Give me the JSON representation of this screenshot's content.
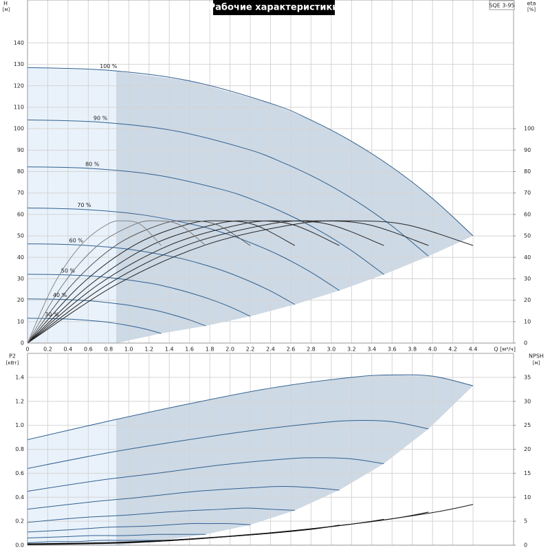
{
  "chart_data": [
    {
      "type": "line",
      "title": "Рабочие характеристики",
      "subtitle": "SQE 3-95",
      "xlabel": "Q [м³/ч]",
      "ylabel": "H",
      "yunit": "[м]",
      "y2label": "eta",
      "y2unit": "[%]",
      "xlim": [
        0,
        4.8
      ],
      "ylim": [
        0,
        160
      ],
      "y2lim": [
        0,
        160
      ],
      "min_flow": 0.88,
      "grid": true,
      "xticks": [
        0,
        0.2,
        0.4,
        0.6,
        0.8,
        {
          "value": 1,
          "label": "1.0"
        },
        1.2,
        1.4,
        1.6,
        1.8,
        {
          "value": 2,
          "label": "2.0"
        },
        2.2,
        2.4,
        2.6,
        2.8,
        {
          "value": 3,
          "label": "3.0"
        },
        3.2,
        3.4,
        3.6,
        3.8,
        {
          "value": 4,
          "label": "4.0"
        },
        4.2,
        4.4
      ],
      "yticks": [
        0,
        10,
        20,
        30,
        40,
        50,
        60,
        70,
        80,
        90,
        100,
        110,
        120,
        130,
        140
      ],
      "y2ticks": [
        0,
        10,
        20,
        30,
        40,
        50,
        60,
        70,
        80,
        90,
        100
      ],
      "series": [
        {
          "name": "100 %",
          "color": "#2f5f8f",
          "x": [
            0,
            0.8,
            1.6,
            2.4,
            2.8,
            3.2,
            3.6,
            4.0,
            4.4
          ],
          "values": [
            128.5,
            127.2,
            122.3,
            111.8,
            104.0,
            94.1,
            82.0,
            67.4,
            50.0
          ]
        },
        {
          "name": "90 %",
          "color": "#2f5f8f",
          "x": [
            0,
            0.72,
            1.44,
            2.16,
            2.52,
            2.88,
            3.24,
            3.6,
            3.96
          ],
          "values": [
            104.1,
            103.0,
            99.1,
            90.6,
            84.2,
            76.2,
            66.4,
            54.6,
            40.5
          ]
        },
        {
          "name": "80 %",
          "color": "#2f5f8f",
          "x": [
            0,
            0.64,
            1.28,
            1.92,
            2.24,
            2.56,
            2.88,
            3.2,
            3.52
          ],
          "values": [
            82.2,
            81.4,
            78.3,
            71.6,
            66.6,
            60.2,
            52.5,
            43.1,
            32.0
          ]
        },
        {
          "name": "70 %",
          "color": "#2f5f8f",
          "x": [
            0,
            0.56,
            1.12,
            1.68,
            1.96,
            2.24,
            2.52,
            2.8,
            3.08
          ],
          "values": [
            63.0,
            62.3,
            59.9,
            54.8,
            51.0,
            46.1,
            40.2,
            33.0,
            24.5
          ]
        },
        {
          "name": "60 %",
          "color": "#2f5f8f",
          "x": [
            0,
            0.48,
            0.96,
            1.44,
            1.68,
            1.92,
            2.16,
            2.4,
            2.64
          ],
          "values": [
            46.3,
            45.8,
            44.0,
            40.2,
            37.4,
            33.9,
            29.5,
            24.3,
            18.0
          ]
        },
        {
          "name": "50 %",
          "color": "#2f5f8f",
          "x": [
            0,
            0.4,
            0.8,
            1.2,
            1.4,
            1.6,
            1.8,
            2.0,
            2.2
          ],
          "values": [
            32.1,
            31.8,
            30.6,
            28.0,
            26.0,
            23.5,
            20.5,
            16.9,
            12.5
          ]
        },
        {
          "name": "40 %",
          "color": "#2f5f8f",
          "x": [
            0,
            0.32,
            0.64,
            0.96,
            1.12,
            1.28,
            1.44,
            1.6,
            1.76
          ],
          "values": [
            20.6,
            20.4,
            19.6,
            17.9,
            16.6,
            15.1,
            13.1,
            10.8,
            8.0
          ]
        },
        {
          "name": "30 %",
          "color": "#2f5f8f",
          "x": [
            0,
            0.24,
            0.48,
            0.72,
            0.84,
            0.96,
            1.08,
            1.2,
            1.32
          ],
          "values": [
            11.6,
            11.4,
            11.0,
            10.1,
            9.4,
            8.5,
            7.4,
            6.1,
            4.5
          ]
        },
        {
          "axis": "y2",
          "color": "#222222",
          "x": [
            0,
            0.88,
            1.76,
            2.64,
            3.17,
            3.74,
            4.4
          ],
          "values": [
            0,
            27.3,
            45.8,
            55.4,
            57.0,
            55.2,
            45.5
          ]
        },
        {
          "axis": "y2",
          "color": "#222222",
          "x": [
            0,
            0.79,
            1.58,
            2.38,
            2.85,
            3.37,
            3.96
          ],
          "values": [
            0,
            27.3,
            45.8,
            55.4,
            57.0,
            55.2,
            45.5
          ]
        },
        {
          "axis": "y2",
          "color": "#222222",
          "x": [
            0,
            0.7,
            1.41,
            2.11,
            2.53,
            2.99,
            3.52
          ],
          "values": [
            0,
            27.3,
            45.8,
            55.4,
            57.0,
            55.2,
            45.5
          ]
        },
        {
          "axis": "y2",
          "color": "#222222",
          "x": [
            0,
            0.62,
            1.23,
            1.85,
            2.22,
            2.62,
            3.08
          ],
          "values": [
            0,
            27.3,
            45.8,
            55.4,
            57.0,
            55.2,
            45.5
          ]
        },
        {
          "axis": "y2",
          "color": "#222222",
          "x": [
            0,
            0.53,
            1.06,
            1.58,
            1.9,
            2.24,
            2.64
          ],
          "values": [
            0,
            27.3,
            45.8,
            55.4,
            57.0,
            55.2,
            45.5
          ]
        },
        {
          "axis": "y2",
          "color": "#555555",
          "x": [
            0,
            0.44,
            0.88,
            1.32,
            1.58,
            1.87,
            2.2
          ],
          "values": [
            0,
            27.3,
            45.8,
            55.4,
            57.0,
            55.2,
            45.5
          ]
        },
        {
          "axis": "y2",
          "color": "#777777",
          "x": [
            0,
            0.35,
            0.7,
            1.06,
            1.27,
            1.5,
            1.76
          ],
          "values": [
            0,
            27.3,
            45.8,
            55.4,
            57.0,
            55.2,
            45.5
          ]
        },
        {
          "axis": "y2",
          "color": "#888888",
          "x": [
            0,
            0.26,
            0.53,
            0.79,
            0.95,
            1.12,
            1.32
          ],
          "values": [
            0,
            27.3,
            45.8,
            55.4,
            57.0,
            55.2,
            45.5
          ]
        }
      ]
    },
    {
      "type": "line",
      "ylabel": "P2",
      "yunit": "[кВт]",
      "y2label": "NPSH",
      "y2unit": "[м]",
      "xlim": [
        0,
        4.8
      ],
      "ylim": [
        0,
        1.6
      ],
      "y2lim": [
        0,
        40
      ],
      "min_flow": 0.88,
      "grid": true,
      "yticks": [
        {
          "value": 0,
          "label": "0.0"
        },
        0.2,
        0.4,
        0.6,
        0.8,
        {
          "value": 1,
          "label": "1.0"
        },
        1.2,
        1.4
      ],
      "y2ticks": [
        0,
        5,
        10,
        15,
        20,
        25,
        30,
        35
      ],
      "series": [
        {
          "color": "#2f5f8f",
          "x": [
            0,
            0.88,
            1.6,
            2.4,
            3.2,
            3.6,
            4.0,
            4.4
          ],
          "values": [
            0.88,
            1.05,
            1.18,
            1.31,
            1.4,
            1.42,
            1.41,
            1.33
          ]
        },
        {
          "color": "#2f5f8f",
          "x": [
            0,
            0.79,
            1.44,
            2.16,
            2.88,
            3.24,
            3.6,
            3.96
          ],
          "values": [
            0.64,
            0.77,
            0.86,
            0.95,
            1.02,
            1.04,
            1.03,
            0.97
          ]
        },
        {
          "color": "#2f5f8f",
          "x": [
            0,
            0.7,
            1.28,
            1.92,
            2.56,
            2.88,
            3.2,
            3.52
          ],
          "values": [
            0.45,
            0.54,
            0.6,
            0.67,
            0.72,
            0.73,
            0.72,
            0.68
          ]
        },
        {
          "color": "#2f5f8f",
          "x": [
            0,
            0.62,
            1.12,
            1.68,
            2.24,
            2.52,
            2.8,
            3.08
          ],
          "values": [
            0.3,
            0.36,
            0.4,
            0.45,
            0.48,
            0.49,
            0.48,
            0.46
          ]
        },
        {
          "color": "#2f5f8f",
          "x": [
            0,
            0.53,
            0.96,
            1.44,
            1.92,
            2.16,
            2.4,
            2.64
          ],
          "values": [
            0.19,
            0.23,
            0.25,
            0.28,
            0.3,
            0.31,
            0.3,
            0.29
          ]
        },
        {
          "color": "#2f5f8f",
          "x": [
            0,
            0.44,
            0.8,
            1.2,
            1.6,
            1.8,
            2.0,
            2.2
          ],
          "values": [
            0.11,
            0.13,
            0.15,
            0.16,
            0.18,
            0.18,
            0.18,
            0.17
          ]
        },
        {
          "color": "#2f5f8f",
          "x": [
            0,
            0.35,
            0.64,
            0.96,
            1.28,
            1.44,
            1.6,
            1.76
          ],
          "values": [
            0.06,
            0.07,
            0.08,
            0.08,
            0.09,
            0.09,
            0.09,
            0.09
          ]
        },
        {
          "color": "#2f5f8f",
          "x": [
            0,
            0.26,
            0.48,
            0.72,
            0.96,
            1.08,
            1.2,
            1.32
          ],
          "values": [
            0.02,
            0.03,
            0.03,
            0.04,
            0.04,
            0.04,
            0.04,
            0.04
          ]
        },
        {
          "axis": "y2",
          "color": "#111111",
          "x": [
            0,
            0.88,
            1.6,
            2.4,
            3.2,
            4.0,
            4.4
          ],
          "values": [
            0.3,
            0.6,
            1.3,
            2.6,
            4.4,
            6.8,
            8.5
          ]
        },
        {
          "axis": "y2",
          "color": "#111111",
          "x": [
            0,
            0.79,
            1.44,
            2.16,
            2.88,
            3.6,
            3.96
          ],
          "values": [
            0.2,
            0.5,
            1.1,
            2.1,
            3.6,
            5.5,
            6.9
          ]
        },
        {
          "axis": "y2",
          "color": "#111111",
          "x": [
            0,
            0.7,
            1.28,
            1.92,
            2.56,
            3.2,
            3.52
          ],
          "values": [
            0.2,
            0.4,
            0.8,
            1.7,
            2.8,
            4.4,
            5.4
          ]
        },
        {
          "axis": "y2",
          "color": "#111111",
          "x": [
            0,
            0.62,
            1.12,
            1.68,
            2.24,
            2.8,
            3.08
          ],
          "values": [
            0.1,
            0.3,
            0.6,
            1.3,
            2.2,
            3.3,
            4.2
          ]
        }
      ]
    }
  ]
}
